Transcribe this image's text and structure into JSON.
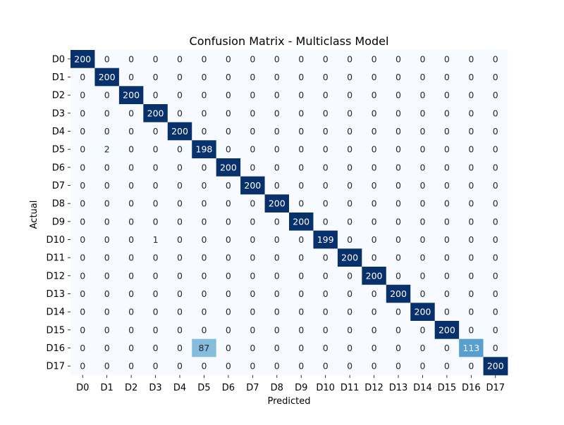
{
  "chart_data": {
    "type": "heatmap",
    "title": "Confusion Matrix - Multiclass Model",
    "xlabel": "Predicted",
    "ylabel": "Actual",
    "row_labels": [
      "D0",
      "D1",
      "D2",
      "D3",
      "D4",
      "D5",
      "D6",
      "D7",
      "D8",
      "D9",
      "D10",
      "D11",
      "D12",
      "D13",
      "D14",
      "D15",
      "D16",
      "D17"
    ],
    "col_labels": [
      "D0",
      "D1",
      "D2",
      "D3",
      "D4",
      "D5",
      "D6",
      "D7",
      "D8",
      "D9",
      "D10",
      "D11",
      "D12",
      "D13",
      "D14",
      "D15",
      "D16",
      "D17"
    ],
    "values": [
      [
        200,
        0,
        0,
        0,
        0,
        0,
        0,
        0,
        0,
        0,
        0,
        0,
        0,
        0,
        0,
        0,
        0,
        0
      ],
      [
        0,
        200,
        0,
        0,
        0,
        0,
        0,
        0,
        0,
        0,
        0,
        0,
        0,
        0,
        0,
        0,
        0,
        0
      ],
      [
        0,
        0,
        200,
        0,
        0,
        0,
        0,
        0,
        0,
        0,
        0,
        0,
        0,
        0,
        0,
        0,
        0,
        0
      ],
      [
        0,
        0,
        0,
        200,
        0,
        0,
        0,
        0,
        0,
        0,
        0,
        0,
        0,
        0,
        0,
        0,
        0,
        0
      ],
      [
        0,
        0,
        0,
        0,
        200,
        0,
        0,
        0,
        0,
        0,
        0,
        0,
        0,
        0,
        0,
        0,
        0,
        0
      ],
      [
        0,
        2,
        0,
        0,
        0,
        198,
        0,
        0,
        0,
        0,
        0,
        0,
        0,
        0,
        0,
        0,
        0,
        0
      ],
      [
        0,
        0,
        0,
        0,
        0,
        0,
        200,
        0,
        0,
        0,
        0,
        0,
        0,
        0,
        0,
        0,
        0,
        0
      ],
      [
        0,
        0,
        0,
        0,
        0,
        0,
        0,
        200,
        0,
        0,
        0,
        0,
        0,
        0,
        0,
        0,
        0,
        0
      ],
      [
        0,
        0,
        0,
        0,
        0,
        0,
        0,
        0,
        200,
        0,
        0,
        0,
        0,
        0,
        0,
        0,
        0,
        0
      ],
      [
        0,
        0,
        0,
        0,
        0,
        0,
        0,
        0,
        0,
        200,
        0,
        0,
        0,
        0,
        0,
        0,
        0,
        0
      ],
      [
        0,
        0,
        0,
        1,
        0,
        0,
        0,
        0,
        0,
        0,
        199,
        0,
        0,
        0,
        0,
        0,
        0,
        0
      ],
      [
        0,
        0,
        0,
        0,
        0,
        0,
        0,
        0,
        0,
        0,
        0,
        200,
        0,
        0,
        0,
        0,
        0,
        0
      ],
      [
        0,
        0,
        0,
        0,
        0,
        0,
        0,
        0,
        0,
        0,
        0,
        0,
        200,
        0,
        0,
        0,
        0,
        0
      ],
      [
        0,
        0,
        0,
        0,
        0,
        0,
        0,
        0,
        0,
        0,
        0,
        0,
        0,
        200,
        0,
        0,
        0,
        0
      ],
      [
        0,
        0,
        0,
        0,
        0,
        0,
        0,
        0,
        0,
        0,
        0,
        0,
        0,
        0,
        200,
        0,
        0,
        0
      ],
      [
        0,
        0,
        0,
        0,
        0,
        0,
        0,
        0,
        0,
        0,
        0,
        0,
        0,
        0,
        0,
        200,
        0,
        0
      ],
      [
        0,
        0,
        0,
        0,
        0,
        87,
        0,
        0,
        0,
        0,
        0,
        0,
        0,
        0,
        0,
        0,
        113,
        0
      ],
      [
        0,
        0,
        0,
        0,
        0,
        0,
        0,
        0,
        0,
        0,
        0,
        0,
        0,
        0,
        0,
        0,
        0,
        200
      ]
    ],
    "value_range": [
      0,
      200
    ],
    "colormap": "Blues",
    "colorbar": false,
    "annotations": true,
    "colors": {
      "low": "#f7fbff",
      "high": "#08306b",
      "text_dark": "#262626",
      "text_light": "#ffffff"
    }
  }
}
